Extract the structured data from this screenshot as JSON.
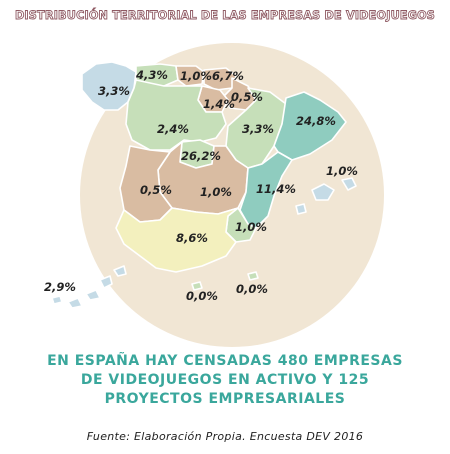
{
  "title": "Distribución territorial de las empresas de videojuegos",
  "regions": {
    "galicia": "3,3%",
    "asturias": "4,3%",
    "cantabria": "1,0%",
    "pais_vasco": "6,7%",
    "navarra": "0,5%",
    "la_rioja": "1,4%",
    "castilla_leon": "2,4%",
    "aragon": "3,3%",
    "cataluna": "24,8%",
    "madrid": "26,2%",
    "extremadura": "0,5%",
    "castilla_la_mancha": "1,0%",
    "valencia": "11,4%",
    "baleares": "1,0%",
    "murcia": "1,0%",
    "andalucia": "8,6%",
    "canarias": "2,9%",
    "ceuta": "0,0%",
    "melilla": "0,0%"
  },
  "colors": {
    "circle": "#f1e6d4",
    "green": "#c6dfb9",
    "tan": "#d9bca2",
    "teal": "#8fccbf",
    "blue": "#c5dbe6",
    "yellow": "#f3f0be",
    "border": "#ffffff",
    "title_outline": "#8f5a63",
    "headline": "#3aa79c"
  },
  "headline": {
    "line1": "EN ESPAÑA HAY CENSADAS 480 EMPRESAS",
    "line2": "DE VIDEOJUEGOS EN ACTIVO Y 125",
    "line3": "PROYECTOS EMPRESARIALES"
  },
  "source": "Fuente: Elaboración Propia. Encuesta DEV 2016"
}
